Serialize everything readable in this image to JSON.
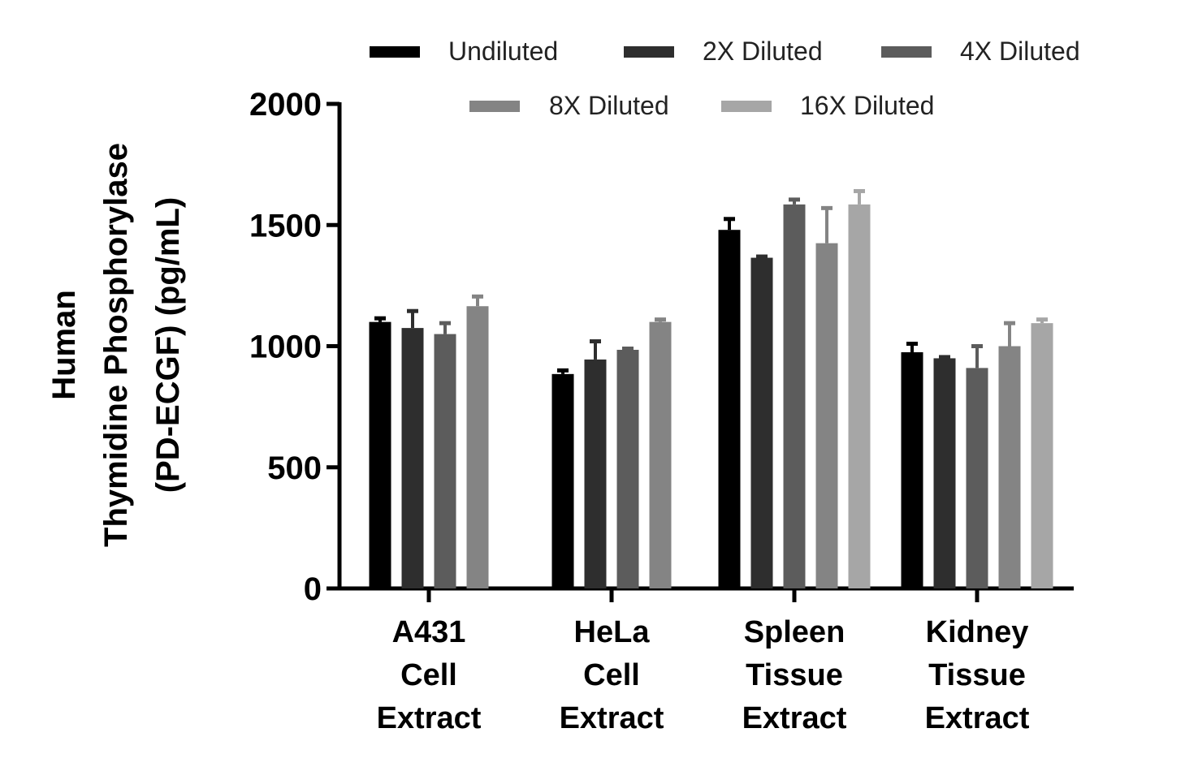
{
  "chart_data": {
    "type": "bar",
    "ylabel": [
      "Human",
      "Thymidine Phosphorylase",
      "(PD-ECGF) (pg/mL)"
    ],
    "ylim": [
      0,
      2000
    ],
    "yticks": [
      0,
      500,
      1000,
      1500,
      2000
    ],
    "categories": [
      [
        "A431",
        "Cell",
        "Extract"
      ],
      [
        "HeLa",
        "Cell",
        "Extract"
      ],
      [
        "Spleen",
        "Tissue",
        "Extract"
      ],
      [
        "Kidney",
        "Tissue",
        "Extract"
      ]
    ],
    "series": [
      {
        "name": "Undiluted",
        "color": "#000000",
        "values": [
          1100,
          885,
          1480,
          975
        ],
        "errors": [
          15,
          15,
          45,
          35
        ]
      },
      {
        "name": "2X Diluted",
        "color": "#2e2e2e",
        "values": [
          1075,
          945,
          1365,
          950
        ],
        "errors": [
          70,
          75,
          5,
          5
        ]
      },
      {
        "name": "4X Diluted",
        "color": "#5c5c5c",
        "values": [
          1050,
          985,
          1585,
          910
        ],
        "errors": [
          45,
          5,
          20,
          90
        ]
      },
      {
        "name": "8X Diluted",
        "color": "#848484",
        "values": [
          1165,
          1100,
          1425,
          1000
        ],
        "errors": [
          40,
          10,
          145,
          95
        ]
      },
      {
        "name": "16X Diluted",
        "color": "#a6a6a6",
        "values": [
          null,
          null,
          1585,
          1095
        ],
        "errors": [
          0,
          0,
          55,
          15
        ]
      }
    ],
    "grid": false,
    "legend": "top"
  }
}
